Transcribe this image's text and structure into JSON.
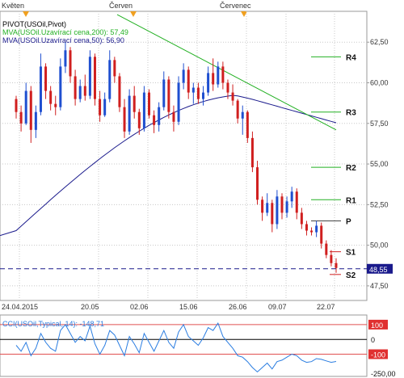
{
  "chart_data": [
    {
      "type": "candlestick",
      "month_labels": [
        "Květen",
        "Červen",
        "Červenec"
      ],
      "date_ticks": [
        "24.04.2015",
        "20.05",
        "02.06",
        "15.06",
        "26.06",
        "09.07",
        "22.07"
      ],
      "price_ticks": [
        "62,50",
        "60,00",
        "57,50",
        "55,00",
        "52,50",
        "50,00",
        "47,50"
      ],
      "ylim": [
        46.6,
        64.4
      ],
      "legend": [
        {
          "text": "PIVOT(USOil,Pivot)",
          "color": "#000000"
        },
        {
          "text": "MVA(USOil.Uzavírací cena,200): 57,49",
          "color": "#22b022"
        },
        {
          "text": "MVA(USOil.Uzavírací cena,50): 56,90",
          "color": "#1a1a8c"
        }
      ],
      "colors": {
        "up": "#1f4fd0",
        "down": "#d01f1f",
        "ma200": "#22b022",
        "ma50": "#1a1a8c",
        "pivot": "#22b022",
        "s_levels": "#d01f1f"
      },
      "current_price": {
        "value": 48.55,
        "label": "48,55"
      },
      "pivot_levels": [
        {
          "name": "R4",
          "value": 61.6
        },
        {
          "name": "R3",
          "value": 58.2
        },
        {
          "name": "R2",
          "value": 54.8
        },
        {
          "name": "R1",
          "value": 52.8
        },
        {
          "name": "P",
          "value": 51.5
        },
        {
          "name": "S1",
          "value": 49.6
        },
        {
          "name": "S2",
          "value": 48.2
        }
      ],
      "candles": [
        [
          59.0,
          59.2,
          57.8,
          58.2
        ],
        [
          58.2,
          58.6,
          57.0,
          57.5
        ],
        [
          57.5,
          60.0,
          57.4,
          59.5
        ],
        [
          59.5,
          59.8,
          56.3,
          57.1
        ],
        [
          57.1,
          58.6,
          56.6,
          58.2
        ],
        [
          58.2,
          61.8,
          58.0,
          61.0
        ],
        [
          61.0,
          61.2,
          59.0,
          59.5
        ],
        [
          59.5,
          59.8,
          58.3,
          58.7
        ],
        [
          58.7,
          59.2,
          58.0,
          58.5
        ],
        [
          58.5,
          61.5,
          58.3,
          61.0
        ],
        [
          61.0,
          62.5,
          60.6,
          62.0
        ],
        [
          62.0,
          62.2,
          60.0,
          60.4
        ],
        [
          60.4,
          60.8,
          58.6,
          59.0
        ],
        [
          59.0,
          60.2,
          58.8,
          59.8
        ],
        [
          59.8,
          60.5,
          58.9,
          59.2
        ],
        [
          59.2,
          62.0,
          59.0,
          61.6
        ],
        [
          61.6,
          61.8,
          58.6,
          59.0
        ],
        [
          59.0,
          59.5,
          57.6,
          58.0
        ],
        [
          58.0,
          59.4,
          57.9,
          59.0
        ],
        [
          59.0,
          62.0,
          58.8,
          61.4
        ],
        [
          61.4,
          61.6,
          60.0,
          60.4
        ],
        [
          60.4,
          60.6,
          58.2,
          58.5
        ],
        [
          58.5,
          59.0,
          56.6,
          57.0
        ],
        [
          57.0,
          59.6,
          56.8,
          59.2
        ],
        [
          59.2,
          59.8,
          57.8,
          58.2
        ],
        [
          58.2,
          58.4,
          56.8,
          57.2
        ],
        [
          57.2,
          59.8,
          57.0,
          59.4
        ],
        [
          59.4,
          59.6,
          57.8,
          58.0
        ],
        [
          58.0,
          58.3,
          56.9,
          57.4
        ],
        [
          57.4,
          58.8,
          57.0,
          58.5
        ],
        [
          58.5,
          60.7,
          58.3,
          60.2
        ],
        [
          60.2,
          60.4,
          57.8,
          58.2
        ],
        [
          58.2,
          58.6,
          57.0,
          57.6
        ],
        [
          57.6,
          60.4,
          57.4,
          60.0
        ],
        [
          60.0,
          61.2,
          59.6,
          60.8
        ],
        [
          60.8,
          61.0,
          59.0,
          59.4
        ],
        [
          59.4,
          60.0,
          58.7,
          59.7
        ],
        [
          59.7,
          60.0,
          58.7,
          59.0
        ],
        [
          59.0,
          59.8,
          58.6,
          59.4
        ],
        [
          59.4,
          61.0,
          59.2,
          60.6
        ],
        [
          60.6,
          61.5,
          59.5,
          59.9
        ],
        [
          59.9,
          61.3,
          59.7,
          61.0
        ],
        [
          61.0,
          61.3,
          59.6,
          60.0
        ],
        [
          60.0,
          60.2,
          59.0,
          59.4
        ],
        [
          59.4,
          59.9,
          58.6,
          58.9
        ],
        [
          58.9,
          59.0,
          57.5,
          57.8
        ],
        [
          57.8,
          58.6,
          56.8,
          58.2
        ],
        [
          58.2,
          58.3,
          56.3,
          56.6
        ],
        [
          56.6,
          57.0,
          54.5,
          54.8
        ],
        [
          54.8,
          55.2,
          52.5,
          52.8
        ],
        [
          52.8,
          53.0,
          51.5,
          52.0
        ],
        [
          52.0,
          53.2,
          51.8,
          52.6
        ],
        [
          52.6,
          52.8,
          50.8,
          51.3
        ],
        [
          51.3,
          53.4,
          51.0,
          53.0
        ],
        [
          53.0,
          53.2,
          51.6,
          52.0
        ],
        [
          52.0,
          53.0,
          51.7,
          52.7
        ],
        [
          52.7,
          53.6,
          52.3,
          53.3
        ],
        [
          53.3,
          53.5,
          51.6,
          52.0
        ],
        [
          52.0,
          52.3,
          51.0,
          51.3
        ],
        [
          51.3,
          51.5,
          50.6,
          50.9
        ],
        [
          50.9,
          51.1,
          50.6,
          50.8
        ],
        [
          50.8,
          51.5,
          50.5,
          51.2
        ],
        [
          51.2,
          51.4,
          49.8,
          50.1
        ],
        [
          50.1,
          50.3,
          49.2,
          49.4
        ],
        [
          49.4,
          49.7,
          48.7,
          48.9
        ],
        [
          48.9,
          49.2,
          48.3,
          48.6
        ]
      ]
    },
    {
      "type": "line",
      "legend": "CCI(USOil,Typical, 14): -148,71",
      "ticks": [
        "100",
        "0",
        "-100",
        "-250,00"
      ],
      "levels": [
        100,
        0,
        -100
      ],
      "ylim": [
        -250,
        165
      ],
      "color": "#2a7de1",
      "values": [
        -40,
        -80,
        -20,
        -110,
        -60,
        40,
        -20,
        -60,
        -80,
        60,
        100,
        40,
        -20,
        20,
        -10,
        90,
        -30,
        -100,
        -40,
        60,
        30,
        -40,
        -110,
        20,
        -30,
        -90,
        40,
        -20,
        -80,
        -10,
        60,
        -20,
        -60,
        50,
        100,
        20,
        -10,
        -40,
        10,
        80,
        60,
        110,
        20,
        -20,
        -60,
        -110,
        -120,
        -150,
        -190,
        -220,
        -190,
        -160,
        -200,
        -150,
        -140,
        -120,
        -100,
        -110,
        -140,
        -155,
        -150,
        -130,
        -135,
        -145,
        -155,
        -149
      ]
    }
  ]
}
